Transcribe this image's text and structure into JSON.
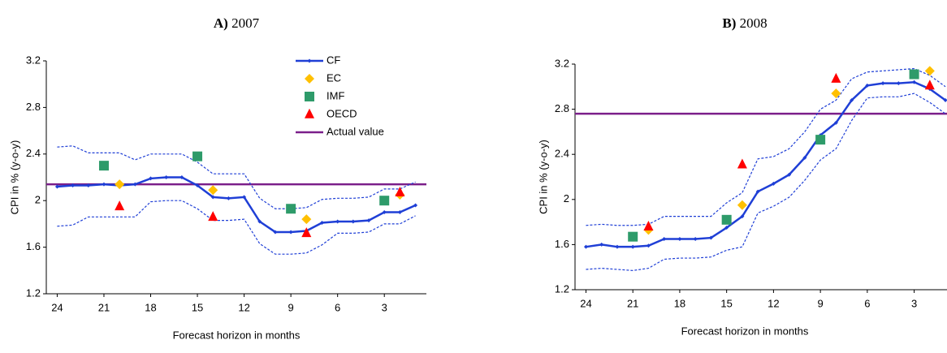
{
  "chart_data": [
    {
      "type": "line",
      "panel_label": "A)",
      "title": "2007",
      "ylabel": "CPI in % (y-o-y)",
      "xlabel": "Forecast horizon in months",
      "x": [
        24,
        23,
        22,
        21,
        20,
        19,
        18,
        17,
        16,
        15,
        14,
        13,
        12,
        11,
        10,
        9,
        8,
        7,
        6,
        5,
        4,
        3,
        2,
        1
      ],
      "xlim": [
        24.7,
        0.3
      ],
      "xticks": [
        24,
        21,
        18,
        15,
        12,
        9,
        6,
        3
      ],
      "ylim": [
        1.2,
        3.2
      ],
      "yticks": [
        1.2,
        1.6,
        2.0,
        2.4,
        2.8,
        3.2
      ],
      "legend": true,
      "series": [
        {
          "name": "CF",
          "color": "#1f3fd6",
          "marker": "diamond",
          "values": [
            2.12,
            2.13,
            2.13,
            2.14,
            2.13,
            2.14,
            2.19,
            2.2,
            2.2,
            2.13,
            2.03,
            2.02,
            2.03,
            1.82,
            1.73,
            1.73,
            1.74,
            1.81,
            1.82,
            1.82,
            1.83,
            1.9,
            1.9,
            1.96
          ]
        },
        {
          "color": "#1f3fd6",
          "dashed": true,
          "values": [
            2.46,
            2.47,
            2.41,
            2.41,
            2.41,
            2.35,
            2.4,
            2.4,
            2.4,
            2.33,
            2.23,
            2.23,
            2.23,
            2.02,
            1.93,
            1.93,
            1.94,
            2.01,
            2.02,
            2.02,
            2.03,
            2.1,
            2.1,
            2.16
          ]
        },
        {
          "color": "#1f3fd6",
          "dashed": true,
          "values": [
            1.78,
            1.79,
            1.86,
            1.86,
            1.86,
            1.86,
            1.99,
            2.0,
            2.0,
            1.93,
            1.83,
            1.83,
            1.84,
            1.63,
            1.54,
            1.54,
            1.55,
            1.62,
            1.72,
            1.72,
            1.73,
            1.8,
            1.8,
            1.87
          ]
        },
        {
          "name": "EC",
          "color": "#ffc000",
          "marker": "diamond",
          "x": [
            20,
            14,
            8,
            2
          ],
          "values": [
            2.14,
            2.09,
            1.84,
            2.05
          ]
        },
        {
          "name": "IMF",
          "color": "#2e9b6a",
          "marker": "square",
          "x": [
            21,
            15,
            9,
            3
          ],
          "values": [
            2.3,
            2.38,
            1.93,
            2.0
          ]
        },
        {
          "name": "OECD",
          "color": "#ff0000",
          "marker": "triangle",
          "x": [
            20,
            14,
            8,
            2
          ],
          "values": [
            1.95,
            1.86,
            1.72,
            2.07
          ]
        }
      ],
      "reference_line": {
        "name": "Actual value",
        "color": "#7b1f8a",
        "value": 2.14
      }
    },
    {
      "type": "line",
      "panel_label": "B)",
      "title": "2008",
      "ylabel": "CPI in % (y-o-y)",
      "xlabel": "Forecast horizon in months",
      "x": [
        24,
        23,
        22,
        21,
        20,
        19,
        18,
        17,
        16,
        15,
        14,
        13,
        12,
        11,
        10,
        9,
        8,
        7,
        6,
        5,
        4,
        3,
        2,
        1
      ],
      "xlim": [
        24.7,
        0.9
      ],
      "xticks": [
        24,
        21,
        18,
        15,
        12,
        9,
        6,
        3
      ],
      "ylim": [
        1.2,
        3.2
      ],
      "yticks": [
        1.2,
        1.6,
        2.0,
        2.4,
        2.8,
        3.2
      ],
      "legend": false,
      "series": [
        {
          "name": "CF",
          "color": "#1f3fd6",
          "marker": "diamond",
          "values": [
            1.58,
            1.6,
            1.58,
            1.58,
            1.59,
            1.65,
            1.65,
            1.65,
            1.66,
            1.75,
            1.85,
            2.07,
            2.14,
            2.22,
            2.37,
            2.57,
            2.68,
            2.88,
            3.01,
            3.03,
            3.03,
            3.04,
            2.98,
            2.88
          ]
        },
        {
          "color": "#1f3fd6",
          "dashed": true,
          "values": [
            1.77,
            1.78,
            1.77,
            1.77,
            1.78,
            1.85,
            1.85,
            1.85,
            1.85,
            1.97,
            2.06,
            2.36,
            2.38,
            2.45,
            2.6,
            2.8,
            2.88,
            3.07,
            3.13,
            3.14,
            3.15,
            3.16,
            3.1,
            3.0
          ]
        },
        {
          "color": "#1f3fd6",
          "dashed": true,
          "values": [
            1.38,
            1.39,
            1.38,
            1.37,
            1.39,
            1.47,
            1.48,
            1.48,
            1.49,
            1.55,
            1.58,
            1.88,
            1.94,
            2.02,
            2.17,
            2.35,
            2.45,
            2.7,
            2.9,
            2.91,
            2.91,
            2.94,
            2.86,
            2.76
          ]
        },
        {
          "name": "EC",
          "color": "#ffc000",
          "marker": "diamond",
          "x": [
            20,
            14,
            8,
            2
          ],
          "values": [
            1.73,
            1.95,
            2.94,
            3.14
          ]
        },
        {
          "name": "IMF",
          "color": "#2e9b6a",
          "marker": "square",
          "x": [
            21,
            15,
            9,
            3
          ],
          "values": [
            1.67,
            1.82,
            2.53,
            3.11
          ]
        },
        {
          "name": "OECD",
          "color": "#ff0000",
          "marker": "triangle",
          "x": [
            20,
            14,
            8,
            2
          ],
          "values": [
            1.76,
            2.31,
            3.07,
            3.01
          ]
        }
      ],
      "reference_line": {
        "name": "Actual value",
        "color": "#7b1f8a",
        "value": 2.76
      }
    }
  ]
}
